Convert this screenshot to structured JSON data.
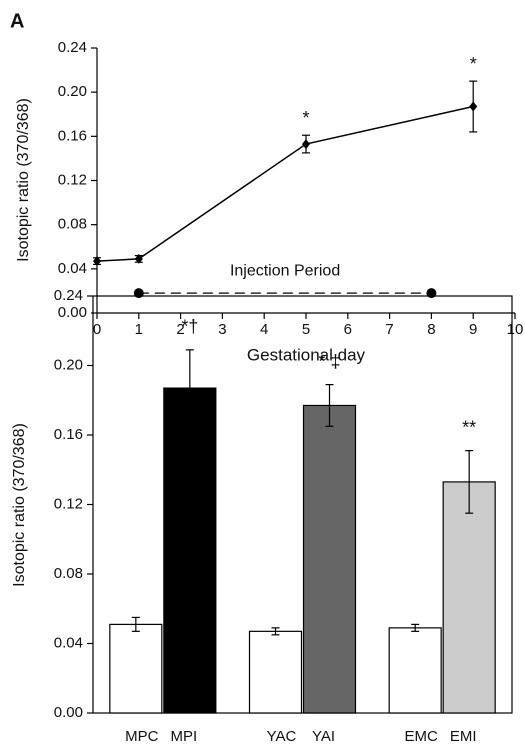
{
  "chart_data": [
    {
      "type": "line",
      "panel": "A",
      "xlabel": "Gestational day",
      "ylabel": "Isotopic ratio (370/368)",
      "x": [
        0,
        1,
        5,
        9
      ],
      "values": [
        0.047,
        0.049,
        0.153,
        0.187
      ],
      "errors": [
        0.003,
        0.003,
        0.008,
        0.023
      ],
      "annotations": [
        null,
        null,
        "*",
        "*"
      ],
      "color": "#000000",
      "injection": {
        "label": "Injection Period",
        "x": [
          1,
          8
        ],
        "y": 0.018
      },
      "xlim": [
        0,
        10
      ],
      "xticks": [
        0,
        1,
        2,
        3,
        4,
        5,
        6,
        7,
        8,
        9,
        10
      ],
      "ylim": [
        0,
        0.24
      ],
      "yticks": [
        {
          "value": 0,
          "label": "0.00"
        },
        0.04,
        0.08,
        0.12,
        0.16,
        {
          "value": 0.2,
          "label": "0.20"
        },
        0.24
      ]
    },
    {
      "type": "bar",
      "ylabel": "Isotopic ratio (370/368)",
      "categories": [
        "MPC",
        "MPI",
        "YAC",
        "YAI",
        "EMC",
        "EMI"
      ],
      "values": [
        0.051,
        0.187,
        0.047,
        0.177,
        0.049,
        0.133
      ],
      "errors": [
        0.004,
        0.022,
        0.002,
        0.012,
        0.002,
        0.018
      ],
      "colors": [
        "#ffffff",
        "#000000",
        "#ffffff",
        "#666666",
        "#ffffff",
        "#cccccc"
      ],
      "annotations": [
        null,
        "*†",
        null,
        "* ‡",
        null,
        "**"
      ],
      "ylim": [
        0,
        0.24
      ],
      "yticks": [
        {
          "value": 0,
          "label": "0.00"
        },
        0.04,
        0.08,
        0.12,
        0.16,
        {
          "value": 0.2,
          "label": "0.20"
        },
        0.24
      ]
    }
  ]
}
